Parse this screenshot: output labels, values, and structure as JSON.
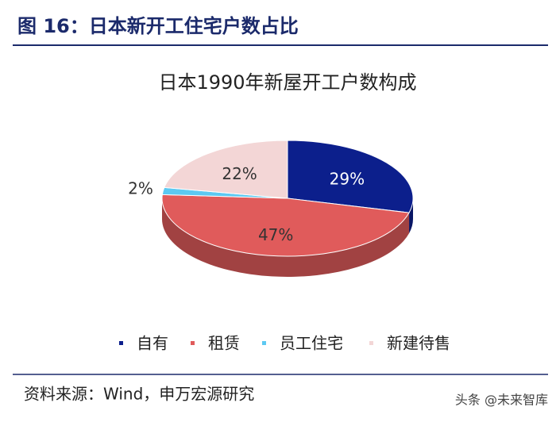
{
  "header": {
    "title": "图 16：日本新开工住宅户数占比"
  },
  "chart_data": {
    "type": "pie",
    "title": "日本1990年新屋开工户数构成",
    "categories": [
      "自有",
      "租赁",
      "员工住宅",
      "新建待售"
    ],
    "values": [
      29,
      47,
      2,
      22
    ],
    "value_labels": [
      "29%",
      "47%",
      "2%",
      "22%"
    ],
    "colors": [
      "#0c1f8c",
      "#e05b5b",
      "#5cc9f2",
      "#f3d6d6"
    ],
    "legend": "bottom"
  },
  "footer": {
    "source": "资料来源：Wind，申万宏源研究",
    "watermark": "头条 @未来智库"
  }
}
